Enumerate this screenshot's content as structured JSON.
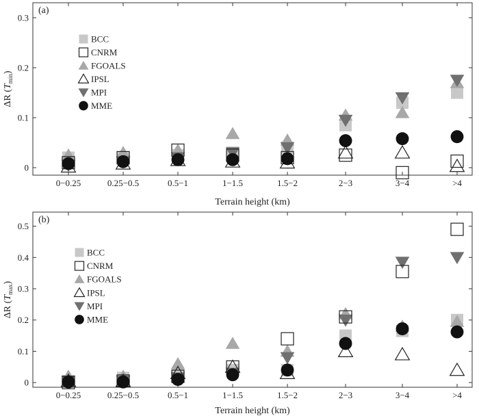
{
  "chart_data": [
    {
      "type": "scatter",
      "panel_label": "(a)",
      "ylabel_main": "ΔR (",
      "ylabel_var": "T",
      "ylabel_sub": "min",
      "ylabel_close": ")",
      "xlabel": "Terrain height (km)",
      "categories": [
        "0−0.25",
        "0.25−0.5",
        "0.5−1",
        "1−1.5",
        "1.5−2",
        "2−3",
        "3−4",
        ">4"
      ],
      "ylim": [
        -0.015,
        0.33
      ],
      "yticks": [
        0,
        0.1,
        0.2,
        0.3
      ],
      "ytick_labels": [
        "0",
        "0.1",
        "0.2",
        "0.3"
      ],
      "series": [
        {
          "name": "BCC",
          "values": [
            0.02,
            0.02,
            0.025,
            0.03,
            0.04,
            0.085,
            0.13,
            0.15
          ]
        },
        {
          "name": "CNRM",
          "values": [
            0.01,
            0.02,
            0.035,
            0.025,
            0.02,
            0.025,
            -0.01,
            0.013
          ]
        },
        {
          "name": "FGOALS",
          "values": [
            0.025,
            0.03,
            0.035,
            0.068,
            0.055,
            0.105,
            0.11,
            0.17
          ]
        },
        {
          "name": "IPSL",
          "values": [
            0.002,
            0.008,
            0.015,
            0.012,
            0.01,
            0.03,
            0.03,
            0.003
          ]
        },
        {
          "name": "MPI",
          "values": [
            0.005,
            0.012,
            0.02,
            0.03,
            0.04,
            0.095,
            0.14,
            0.175
          ]
        },
        {
          "name": "MME",
          "values": [
            0.008,
            0.012,
            0.016,
            0.016,
            0.018,
            0.054,
            0.058,
            0.062
          ]
        }
      ]
    },
    {
      "type": "scatter",
      "panel_label": "(b)",
      "ylabel_main": "ΔR (",
      "ylabel_var": "T",
      "ylabel_sub": "max",
      "ylabel_close": ")",
      "xlabel": "Terrain height (km)",
      "categories": [
        "0−0.25",
        "0.25−0.5",
        "0.5−1",
        "1−1.5",
        "1.5−2",
        "2−3",
        "3−4",
        ">4"
      ],
      "ylim": [
        -0.015,
        0.545
      ],
      "yticks": [
        0,
        0.1,
        0.2,
        0.3,
        0.4,
        0.5
      ],
      "ytick_labels": [
        "0",
        "0.1",
        "0.2",
        "0.3",
        "0.4",
        "0.5"
      ],
      "series": [
        {
          "name": "BCC",
          "values": [
            0.005,
            0.015,
            0.03,
            0.04,
            0.04,
            0.15,
            0.165,
            0.2
          ]
        },
        {
          "name": "CNRM",
          "values": [
            0.0,
            0.005,
            0.02,
            0.05,
            0.14,
            0.21,
            0.355,
            0.49
          ]
        },
        {
          "name": "FGOALS",
          "values": [
            0.02,
            0.02,
            0.06,
            0.125,
            0.1,
            0.22,
            0.18,
            0.195
          ]
        },
        {
          "name": "IPSL",
          "values": [
            0.005,
            0.005,
            0.03,
            0.05,
            0.03,
            0.1,
            0.09,
            0.04
          ]
        },
        {
          "name": "MPI",
          "values": [
            0.005,
            0.005,
            0.015,
            0.03,
            0.08,
            0.2,
            0.385,
            0.4
          ]
        },
        {
          "name": "MME",
          "values": [
            0.002,
            0.002,
            0.01,
            0.025,
            0.04,
            0.125,
            0.172,
            0.162
          ]
        }
      ]
    }
  ],
  "colors": {
    "BCC": "#c8c8c8",
    "CNRM": "#222222",
    "FGOALS": "#a8a8a8",
    "IPSL": "#222222",
    "MPI": "#707070",
    "MME": "#111111"
  }
}
